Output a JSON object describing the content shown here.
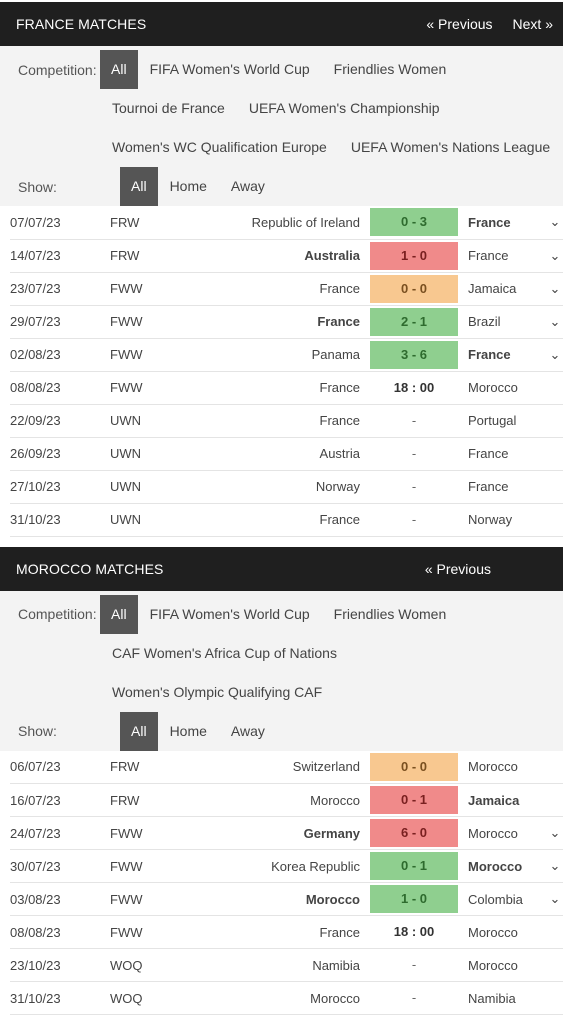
{
  "france": {
    "title": "FRANCE MATCHES",
    "prev": "« Previous",
    "next": "Next »",
    "competition_label": "Competition:",
    "competitions_row1": [
      "All",
      "FIFA Women's World Cup",
      "Friendlies Women"
    ],
    "competitions_row2": [
      "Tournoi de France",
      "UEFA Women's Championship"
    ],
    "competitions_row3": [
      "Women's WC Qualification Europe",
      "UEFA Women's Nations League"
    ],
    "show_label": "Show:",
    "show_options": [
      "All",
      "Home",
      "Away"
    ],
    "matches": [
      {
        "date": "07/07/23",
        "comp": "FRW",
        "home": "Republic of Ireland",
        "score": "0 - 3",
        "away": "France",
        "result": "win",
        "bold": "away",
        "chevron": "⌄"
      },
      {
        "date": "14/07/23",
        "comp": "FRW",
        "home": "Australia",
        "score": "1 - 0",
        "away": "France",
        "result": "loss",
        "bold": "home",
        "chevron": "⌄"
      },
      {
        "date": "23/07/23",
        "comp": "FWW",
        "home": "France",
        "score": "0 - 0",
        "away": "Jamaica",
        "result": "draw",
        "bold": "",
        "chevron": "⌄"
      },
      {
        "date": "29/07/23",
        "comp": "FWW",
        "home": "France",
        "score": "2 - 1",
        "away": "Brazil",
        "result": "win",
        "bold": "home",
        "chevron": "⌄"
      },
      {
        "date": "02/08/23",
        "comp": "FWW",
        "home": "Panama",
        "score": "3 - 6",
        "away": "France",
        "result": "win",
        "bold": "away",
        "chevron": "⌄"
      },
      {
        "date": "08/08/23",
        "comp": "FWW",
        "home": "France",
        "score": "18 : 00",
        "away": "Morocco",
        "result": "time",
        "bold": "",
        "chevron": ""
      },
      {
        "date": "22/09/23",
        "comp": "UWN",
        "home": "France",
        "score": "-",
        "away": "Portugal",
        "result": "dash",
        "bold": "",
        "chevron": ""
      },
      {
        "date": "26/09/23",
        "comp": "UWN",
        "home": "Austria",
        "score": "-",
        "away": "France",
        "result": "dash",
        "bold": "",
        "chevron": ""
      },
      {
        "date": "27/10/23",
        "comp": "UWN",
        "home": "Norway",
        "score": "-",
        "away": "France",
        "result": "dash",
        "bold": "",
        "chevron": ""
      },
      {
        "date": "31/10/23",
        "comp": "UWN",
        "home": "France",
        "score": "-",
        "away": "Norway",
        "result": "dash",
        "bold": "",
        "chevron": ""
      }
    ]
  },
  "morocco": {
    "title": "MOROCCO MATCHES",
    "prev": "« Previous",
    "competition_label": "Competition:",
    "competitions_row1": [
      "All",
      "FIFA Women's World Cup",
      "Friendlies Women"
    ],
    "competitions_row2": [
      "CAF Women's Africa Cup of Nations"
    ],
    "competitions_row3": [
      "Women's Olympic Qualifying CAF"
    ],
    "show_label": "Show:",
    "show_options": [
      "All",
      "Home",
      "Away"
    ],
    "matches": [
      {
        "date": "06/07/23",
        "comp": "FRW",
        "home": "Switzerland",
        "score": "0 - 0",
        "away": "Morocco",
        "result": "draw",
        "bold": "",
        "chevron": ""
      },
      {
        "date": "16/07/23",
        "comp": "FRW",
        "home": "Morocco",
        "score": "0 - 1",
        "away": "Jamaica",
        "result": "loss",
        "bold": "away",
        "chevron": ""
      },
      {
        "date": "24/07/23",
        "comp": "FWW",
        "home": "Germany",
        "score": "6 - 0",
        "away": "Morocco",
        "result": "loss",
        "bold": "home",
        "chevron": "⌄"
      },
      {
        "date": "30/07/23",
        "comp": "FWW",
        "home": "Korea Republic",
        "score": "0 - 1",
        "away": "Morocco",
        "result": "win",
        "bold": "away",
        "chevron": "⌄"
      },
      {
        "date": "03/08/23",
        "comp": "FWW",
        "home": "Morocco",
        "score": "1 - 0",
        "away": "Colombia",
        "result": "win",
        "bold": "home",
        "chevron": "⌄"
      },
      {
        "date": "08/08/23",
        "comp": "FWW",
        "home": "France",
        "score": "18 : 00",
        "away": "Morocco",
        "result": "time",
        "bold": "",
        "chevron": ""
      },
      {
        "date": "23/10/23",
        "comp": "WOQ",
        "home": "Namibia",
        "score": "-",
        "away": "Morocco",
        "result": "dash",
        "bold": "",
        "chevron": ""
      },
      {
        "date": "31/10/23",
        "comp": "WOQ",
        "home": "Morocco",
        "score": "-",
        "away": "Namibia",
        "result": "dash",
        "bold": "",
        "chevron": ""
      }
    ]
  },
  "colors": {
    "header_bg": "#1f1f1f",
    "filter_bg": "#f3f3f3",
    "active_pill": "#555555",
    "win": "#8fcf8f",
    "loss": "#f08a8a",
    "draw": "#f8c890"
  }
}
